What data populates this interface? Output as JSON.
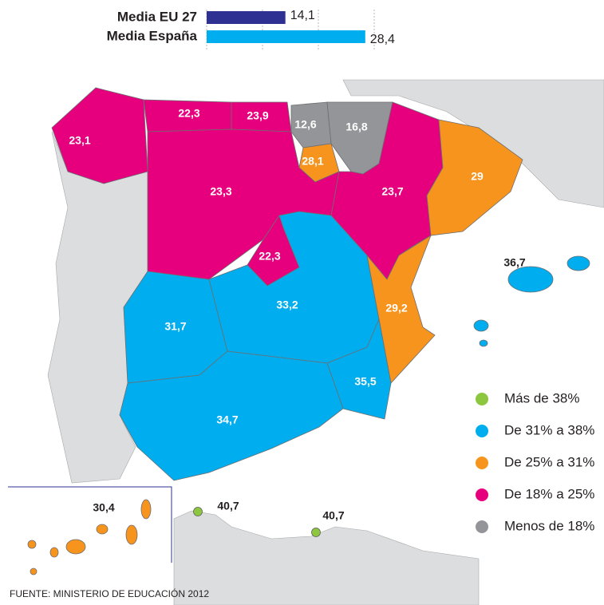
{
  "bar_chart": {
    "type": "bar",
    "categories": [
      "Media EU 27",
      "Media España"
    ],
    "values": [
      14.1,
      28.4
    ],
    "value_labels": [
      "14,1",
      "28,4"
    ],
    "colors": [
      "#2e3192",
      "#00aeef"
    ],
    "xlim": [
      0,
      30
    ],
    "xticks": [
      0,
      10,
      20,
      30
    ]
  },
  "map": {
    "regions": [
      {
        "label": "23,1",
        "value": 23.1,
        "color": "#e6007e"
      },
      {
        "label": "22,3",
        "value": 22.3,
        "color": "#e6007e"
      },
      {
        "label": "23,9",
        "value": 23.9,
        "color": "#e6007e"
      },
      {
        "label": "12,6",
        "value": 12.6,
        "color": "#939598"
      },
      {
        "label": "16,8",
        "value": 16.8,
        "color": "#939598"
      },
      {
        "label": "28,1",
        "value": 28.1,
        "color": "#f7941d"
      },
      {
        "label": "23,3",
        "value": 23.3,
        "color": "#e6007e"
      },
      {
        "label": "23,7",
        "value": 23.7,
        "color": "#e6007e"
      },
      {
        "label": "29",
        "value": 29,
        "color": "#f7941d"
      },
      {
        "label": "22,3",
        "value": 22.3,
        "color": "#e6007e"
      },
      {
        "label": "31,7",
        "value": 31.7,
        "color": "#00aeef"
      },
      {
        "label": "33,2",
        "value": 33.2,
        "color": "#00aeef"
      },
      {
        "label": "29,2",
        "value": 29.2,
        "color": "#f7941d"
      },
      {
        "label": "35,5",
        "value": 35.5,
        "color": "#00aeef"
      },
      {
        "label": "34,7",
        "value": 34.7,
        "color": "#00aeef"
      },
      {
        "label": "36,7",
        "value": 36.7,
        "color": "#00aeef"
      },
      {
        "label": "30,4",
        "value": 30.4,
        "color": "#f7941d"
      },
      {
        "label": "40,7",
        "value": 40.7,
        "color": "#8dc63f"
      },
      {
        "label": "40,7",
        "value": 40.7,
        "color": "#8dc63f"
      }
    ]
  },
  "legend": [
    {
      "label": "Más de 38%",
      "color": "#8dc63f"
    },
    {
      "label": "De 31% a 38%",
      "color": "#00aeef"
    },
    {
      "label": "De 25% a 31%",
      "color": "#f7941d"
    },
    {
      "label": "De 18% a 25%",
      "color": "#e6007e"
    },
    {
      "label": "Menos de 18%",
      "color": "#939598"
    }
  ],
  "source": "FUENTE: MINISTERIO DE EDUCACIÓN 2012"
}
